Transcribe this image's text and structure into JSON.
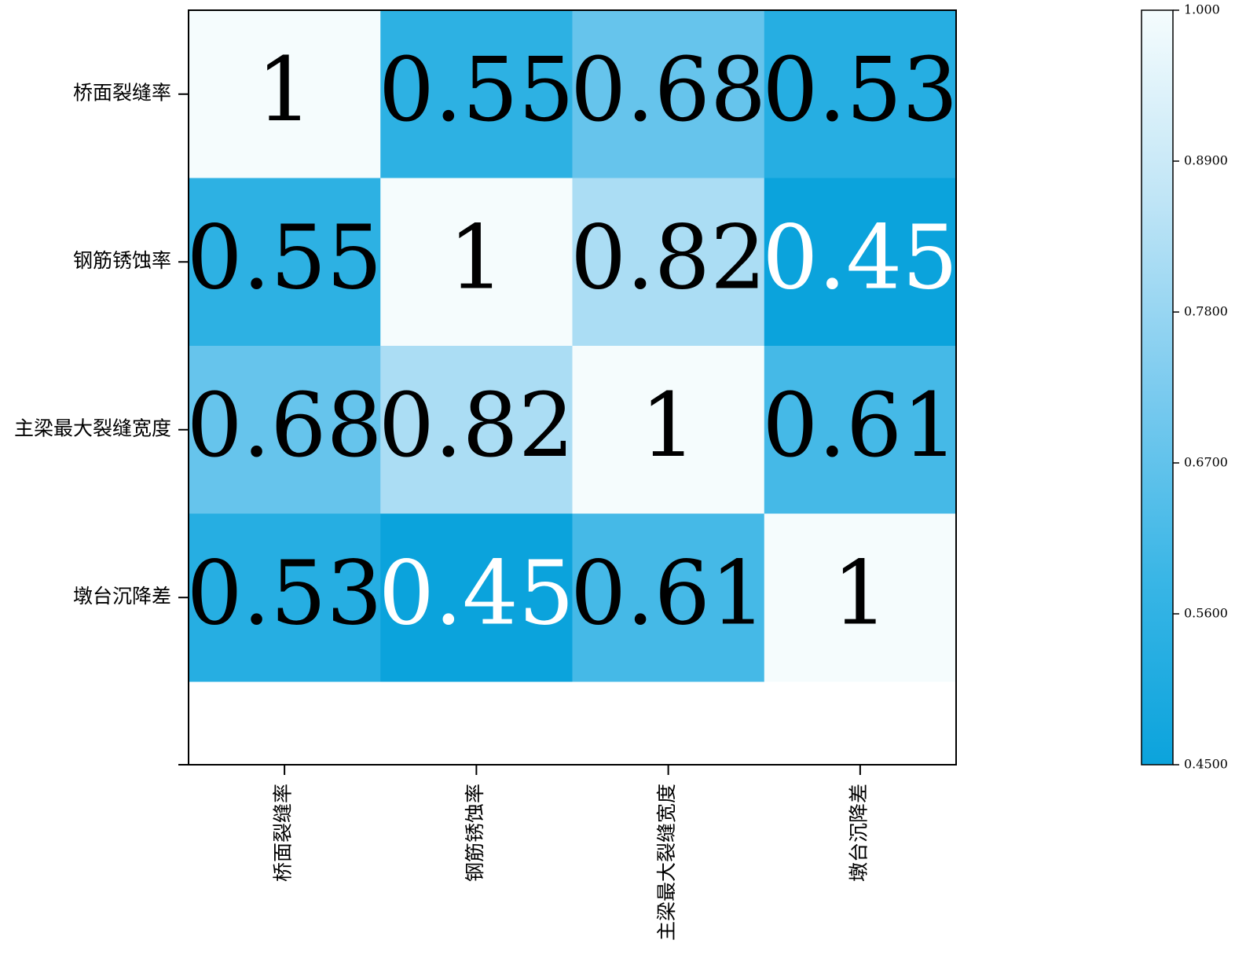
{
  "chart_data": {
    "type": "heatmap",
    "x_categories": [
      "桥面裂缝率",
      "钢筋锈蚀率",
      "主梁最大裂缝宽度",
      "墩台沉降差"
    ],
    "y_categories": [
      "桥面裂缝率",
      "钢筋锈蚀率",
      "主梁最大裂缝宽度",
      "墩台沉降差"
    ],
    "values": [
      [
        1,
        0.55,
        0.68,
        0.53
      ],
      [
        0.55,
        1,
        0.82,
        0.45
      ],
      [
        0.68,
        0.82,
        1,
        0.61
      ],
      [
        0.53,
        0.45,
        0.61,
        1
      ]
    ],
    "clim": [
      0.45,
      1.0
    ],
    "colorbar_ticks": [
      {
        "value": 1.0,
        "label": "1.000"
      },
      {
        "value": 0.89,
        "label": "0.8900"
      },
      {
        "value": 0.78,
        "label": "0.7800"
      },
      {
        "value": 0.67,
        "label": "0.6700"
      },
      {
        "value": 0.56,
        "label": "0.5600"
      },
      {
        "value": 0.45,
        "label": "0.4500"
      }
    ],
    "colorscale": [
      "#0ba3dc",
      "#3ab6e6",
      "#7ccbef",
      "#c0e5f6",
      "#f5fcfd"
    ]
  }
}
